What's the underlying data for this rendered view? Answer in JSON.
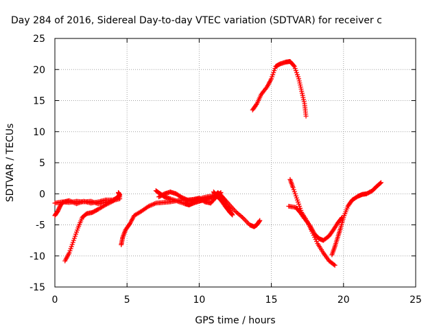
{
  "chart_data": {
    "type": "scatter",
    "title": "Day 284 of 2016, Sidereal Day-to-day VTEC variation (SDTVAR) for receiver c",
    "xlabel": "GPS time / hours",
    "ylabel": "SDTVAR / TECUs",
    "xlim": [
      0,
      25
    ],
    "ylim": [
      -15,
      25
    ],
    "xticks": [
      0,
      5,
      10,
      15,
      20,
      25
    ],
    "yticks": [
      -15,
      -10,
      -5,
      0,
      5,
      10,
      15,
      20,
      25
    ],
    "grid": true,
    "marker": "plus",
    "color": "#ff0000",
    "series": [
      {
        "values": [
          [
            0.0,
            -1.5
          ],
          [
            0.5,
            -1.3
          ],
          [
            1.0,
            -1.4
          ],
          [
            1.5,
            -1.2
          ],
          [
            2.0,
            -1.3
          ],
          [
            2.5,
            -1.2
          ],
          [
            3.0,
            -1.6
          ],
          [
            3.5,
            -1.4
          ],
          [
            4.0,
            -1.1
          ],
          [
            4.5,
            -0.8
          ]
        ]
      },
      {
        "values": [
          [
            0.0,
            -3.5
          ],
          [
            0.2,
            -2.8
          ],
          [
            0.4,
            -1.8
          ],
          [
            0.6,
            -1.3
          ],
          [
            1.0,
            -1.1
          ],
          [
            1.5,
            -1.6
          ],
          [
            2.0,
            -1.2
          ],
          [
            2.5,
            -1.5
          ],
          [
            3.0,
            -1.3
          ],
          [
            3.5,
            -1.0
          ],
          [
            4.0,
            -1.0
          ],
          [
            4.5,
            -0.5
          ]
        ]
      },
      {
        "values": [
          [
            0.7,
            -10.8
          ],
          [
            1.0,
            -9.5
          ],
          [
            1.3,
            -7.5
          ],
          [
            1.6,
            -5.5
          ],
          [
            1.9,
            -3.8
          ],
          [
            2.2,
            -3.2
          ],
          [
            2.6,
            -3.0
          ],
          [
            3.0,
            -2.5
          ],
          [
            3.5,
            -1.8
          ],
          [
            4.0,
            -1.2
          ],
          [
            4.3,
            -0.6
          ],
          [
            4.5,
            -0.2
          ],
          [
            4.4,
            0.2
          ]
        ]
      },
      {
        "values": [
          [
            4.6,
            -8.2
          ],
          [
            4.7,
            -7.0
          ],
          [
            4.9,
            -5.8
          ],
          [
            5.2,
            -4.8
          ],
          [
            5.5,
            -3.5
          ],
          [
            6.0,
            -2.8
          ],
          [
            6.5,
            -2.0
          ],
          [
            7.0,
            -1.5
          ],
          [
            7.5,
            -1.4
          ],
          [
            8.0,
            -1.3
          ],
          [
            8.5,
            -1.1
          ],
          [
            9.0,
            -1.0
          ],
          [
            9.5,
            -1.2
          ],
          [
            10.0,
            -0.8
          ],
          [
            10.5,
            -0.5
          ],
          [
            11.0,
            -0.3
          ],
          [
            11.5,
            -0.2
          ],
          [
            12.0,
            -1.5
          ],
          [
            12.5,
            -2.8
          ],
          [
            13.0,
            -3.8
          ],
          [
            13.5,
            -5.0
          ],
          [
            13.8,
            -5.3
          ],
          [
            14.0,
            -5.0
          ],
          [
            14.2,
            -4.3
          ]
        ]
      },
      {
        "values": [
          [
            7.0,
            0.5
          ],
          [
            7.3,
            0.0
          ],
          [
            7.6,
            -0.5
          ],
          [
            8.0,
            -0.8
          ],
          [
            8.5,
            -1.2
          ],
          [
            9.0,
            -1.6
          ],
          [
            9.3,
            -1.8
          ],
          [
            9.6,
            -1.5
          ],
          [
            10.0,
            -1.2
          ],
          [
            10.3,
            -1.0
          ],
          [
            10.6,
            -0.8
          ],
          [
            11.0,
            -0.5
          ],
          [
            11.3,
            0.2
          ],
          [
            11.6,
            -0.5
          ],
          [
            12.0,
            -2.0
          ],
          [
            12.3,
            -3.4
          ]
        ]
      },
      {
        "values": [
          [
            7.2,
            -0.5
          ],
          [
            7.6,
            0.0
          ],
          [
            8.0,
            0.3
          ],
          [
            8.4,
            0.0
          ],
          [
            8.8,
            -0.6
          ],
          [
            9.2,
            -1.0
          ],
          [
            9.6,
            -0.9
          ],
          [
            10.0,
            -0.7
          ],
          [
            10.4,
            -1.3
          ],
          [
            10.8,
            -1.5
          ],
          [
            11.2,
            -0.5
          ],
          [
            11.5,
            0.2
          ]
        ]
      },
      {
        "values": [
          [
            11.0,
            0.3
          ],
          [
            11.2,
            -0.3
          ],
          [
            11.5,
            -1.0
          ],
          [
            11.8,
            -2.0
          ],
          [
            12.1,
            -2.9
          ],
          [
            12.3,
            -3.4
          ]
        ]
      },
      {
        "values": [
          [
            13.7,
            13.5
          ],
          [
            14.0,
            14.5
          ],
          [
            14.3,
            16.0
          ],
          [
            14.7,
            17.2
          ],
          [
            15.0,
            18.5
          ],
          [
            15.3,
            20.5
          ],
          [
            15.6,
            20.9
          ],
          [
            16.0,
            21.2
          ],
          [
            16.3,
            21.3
          ],
          [
            16.6,
            20.5
          ],
          [
            16.9,
            18.5
          ],
          [
            17.1,
            16.5
          ],
          [
            17.3,
            14.5
          ],
          [
            17.4,
            12.5
          ]
        ]
      },
      {
        "values": [
          [
            16.3,
            2.3
          ],
          [
            16.5,
            1.0
          ],
          [
            16.8,
            -1.0
          ],
          [
            17.1,
            -3.0
          ],
          [
            17.5,
            -4.5
          ],
          [
            17.8,
            -6.0
          ],
          [
            18.2,
            -8.0
          ],
          [
            18.6,
            -9.5
          ],
          [
            19.0,
            -10.8
          ],
          [
            19.4,
            -11.5
          ]
        ]
      },
      {
        "values": [
          [
            16.2,
            -2.0
          ],
          [
            16.7,
            -2.2
          ],
          [
            17.0,
            -3.0
          ],
          [
            17.3,
            -4.0
          ],
          [
            17.7,
            -5.2
          ],
          [
            18.0,
            -6.5
          ],
          [
            18.3,
            -7.2
          ],
          [
            18.6,
            -7.5
          ],
          [
            19.0,
            -6.8
          ],
          [
            19.3,
            -5.8
          ],
          [
            19.6,
            -4.7
          ],
          [
            19.9,
            -3.8
          ]
        ]
      },
      {
        "values": [
          [
            19.2,
            -9.8
          ],
          [
            19.4,
            -8.5
          ],
          [
            19.6,
            -7.0
          ],
          [
            19.8,
            -5.5
          ],
          [
            20.0,
            -3.8
          ],
          [
            20.3,
            -2.0
          ],
          [
            20.6,
            -1.0
          ],
          [
            21.0,
            -0.4
          ],
          [
            21.3,
            -0.1
          ],
          [
            21.6,
            0.0
          ],
          [
            22.0,
            0.5
          ],
          [
            22.3,
            1.2
          ],
          [
            22.6,
            1.8
          ]
        ]
      }
    ]
  }
}
